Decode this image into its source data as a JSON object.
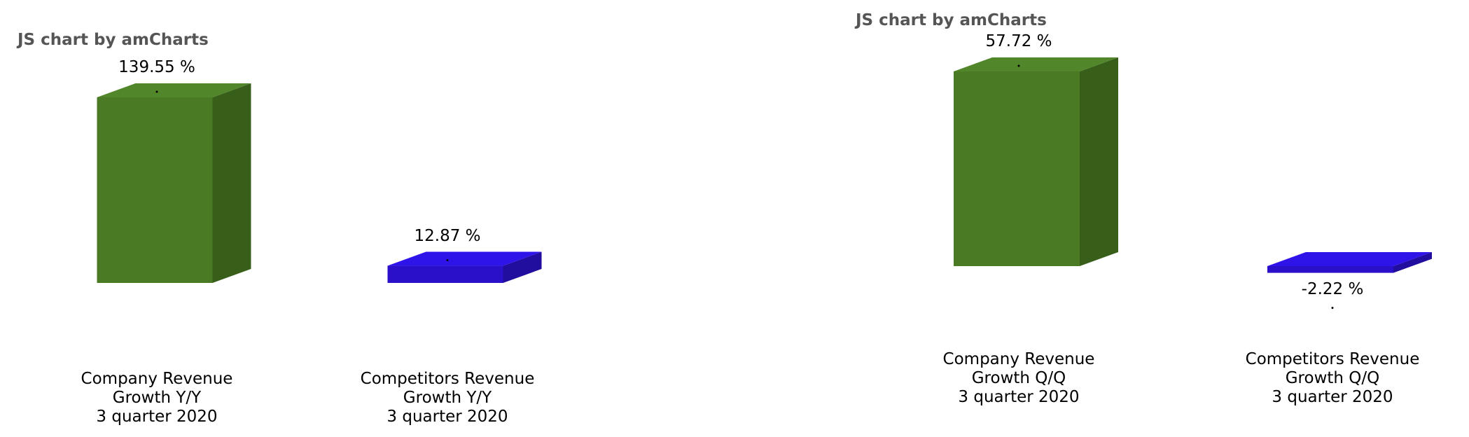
{
  "colors": {
    "company_front": "#4a7a24",
    "company_top": "#52862a",
    "company_side": "#375f1a",
    "competitor_front": "#2a10c8",
    "competitor_top": "#2e14e8",
    "competitor_side": "#220e9e"
  },
  "chart_data": [
    {
      "type": "bar",
      "credit": "JS chart by amCharts",
      "categories": [
        [
          "Company Revenue",
          "Growth Y/Y",
          "3 quarter 2020"
        ],
        [
          "Competitors Revenue",
          "Growth Y/Y",
          "3 quarter 2020"
        ]
      ],
      "values": [
        139.55,
        12.87
      ],
      "value_labels": [
        "139.55 %",
        "12.87 %"
      ],
      "ylim": [
        0,
        139.55
      ],
      "grid": false,
      "style": "3d-column"
    },
    {
      "type": "bar",
      "credit": "JS chart by amCharts",
      "categories": [
        [
          "Company Revenue",
          "Growth Q/Q",
          "3 quarter 2020"
        ],
        [
          "Competitors Revenue",
          "Growth Q/Q",
          "3 quarter 2020"
        ]
      ],
      "values": [
        57.72,
        -2.22
      ],
      "value_labels": [
        "57.72 %",
        "-2.22 %"
      ],
      "ylim": [
        -2.22,
        57.72
      ],
      "grid": false,
      "style": "3d-column"
    }
  ]
}
